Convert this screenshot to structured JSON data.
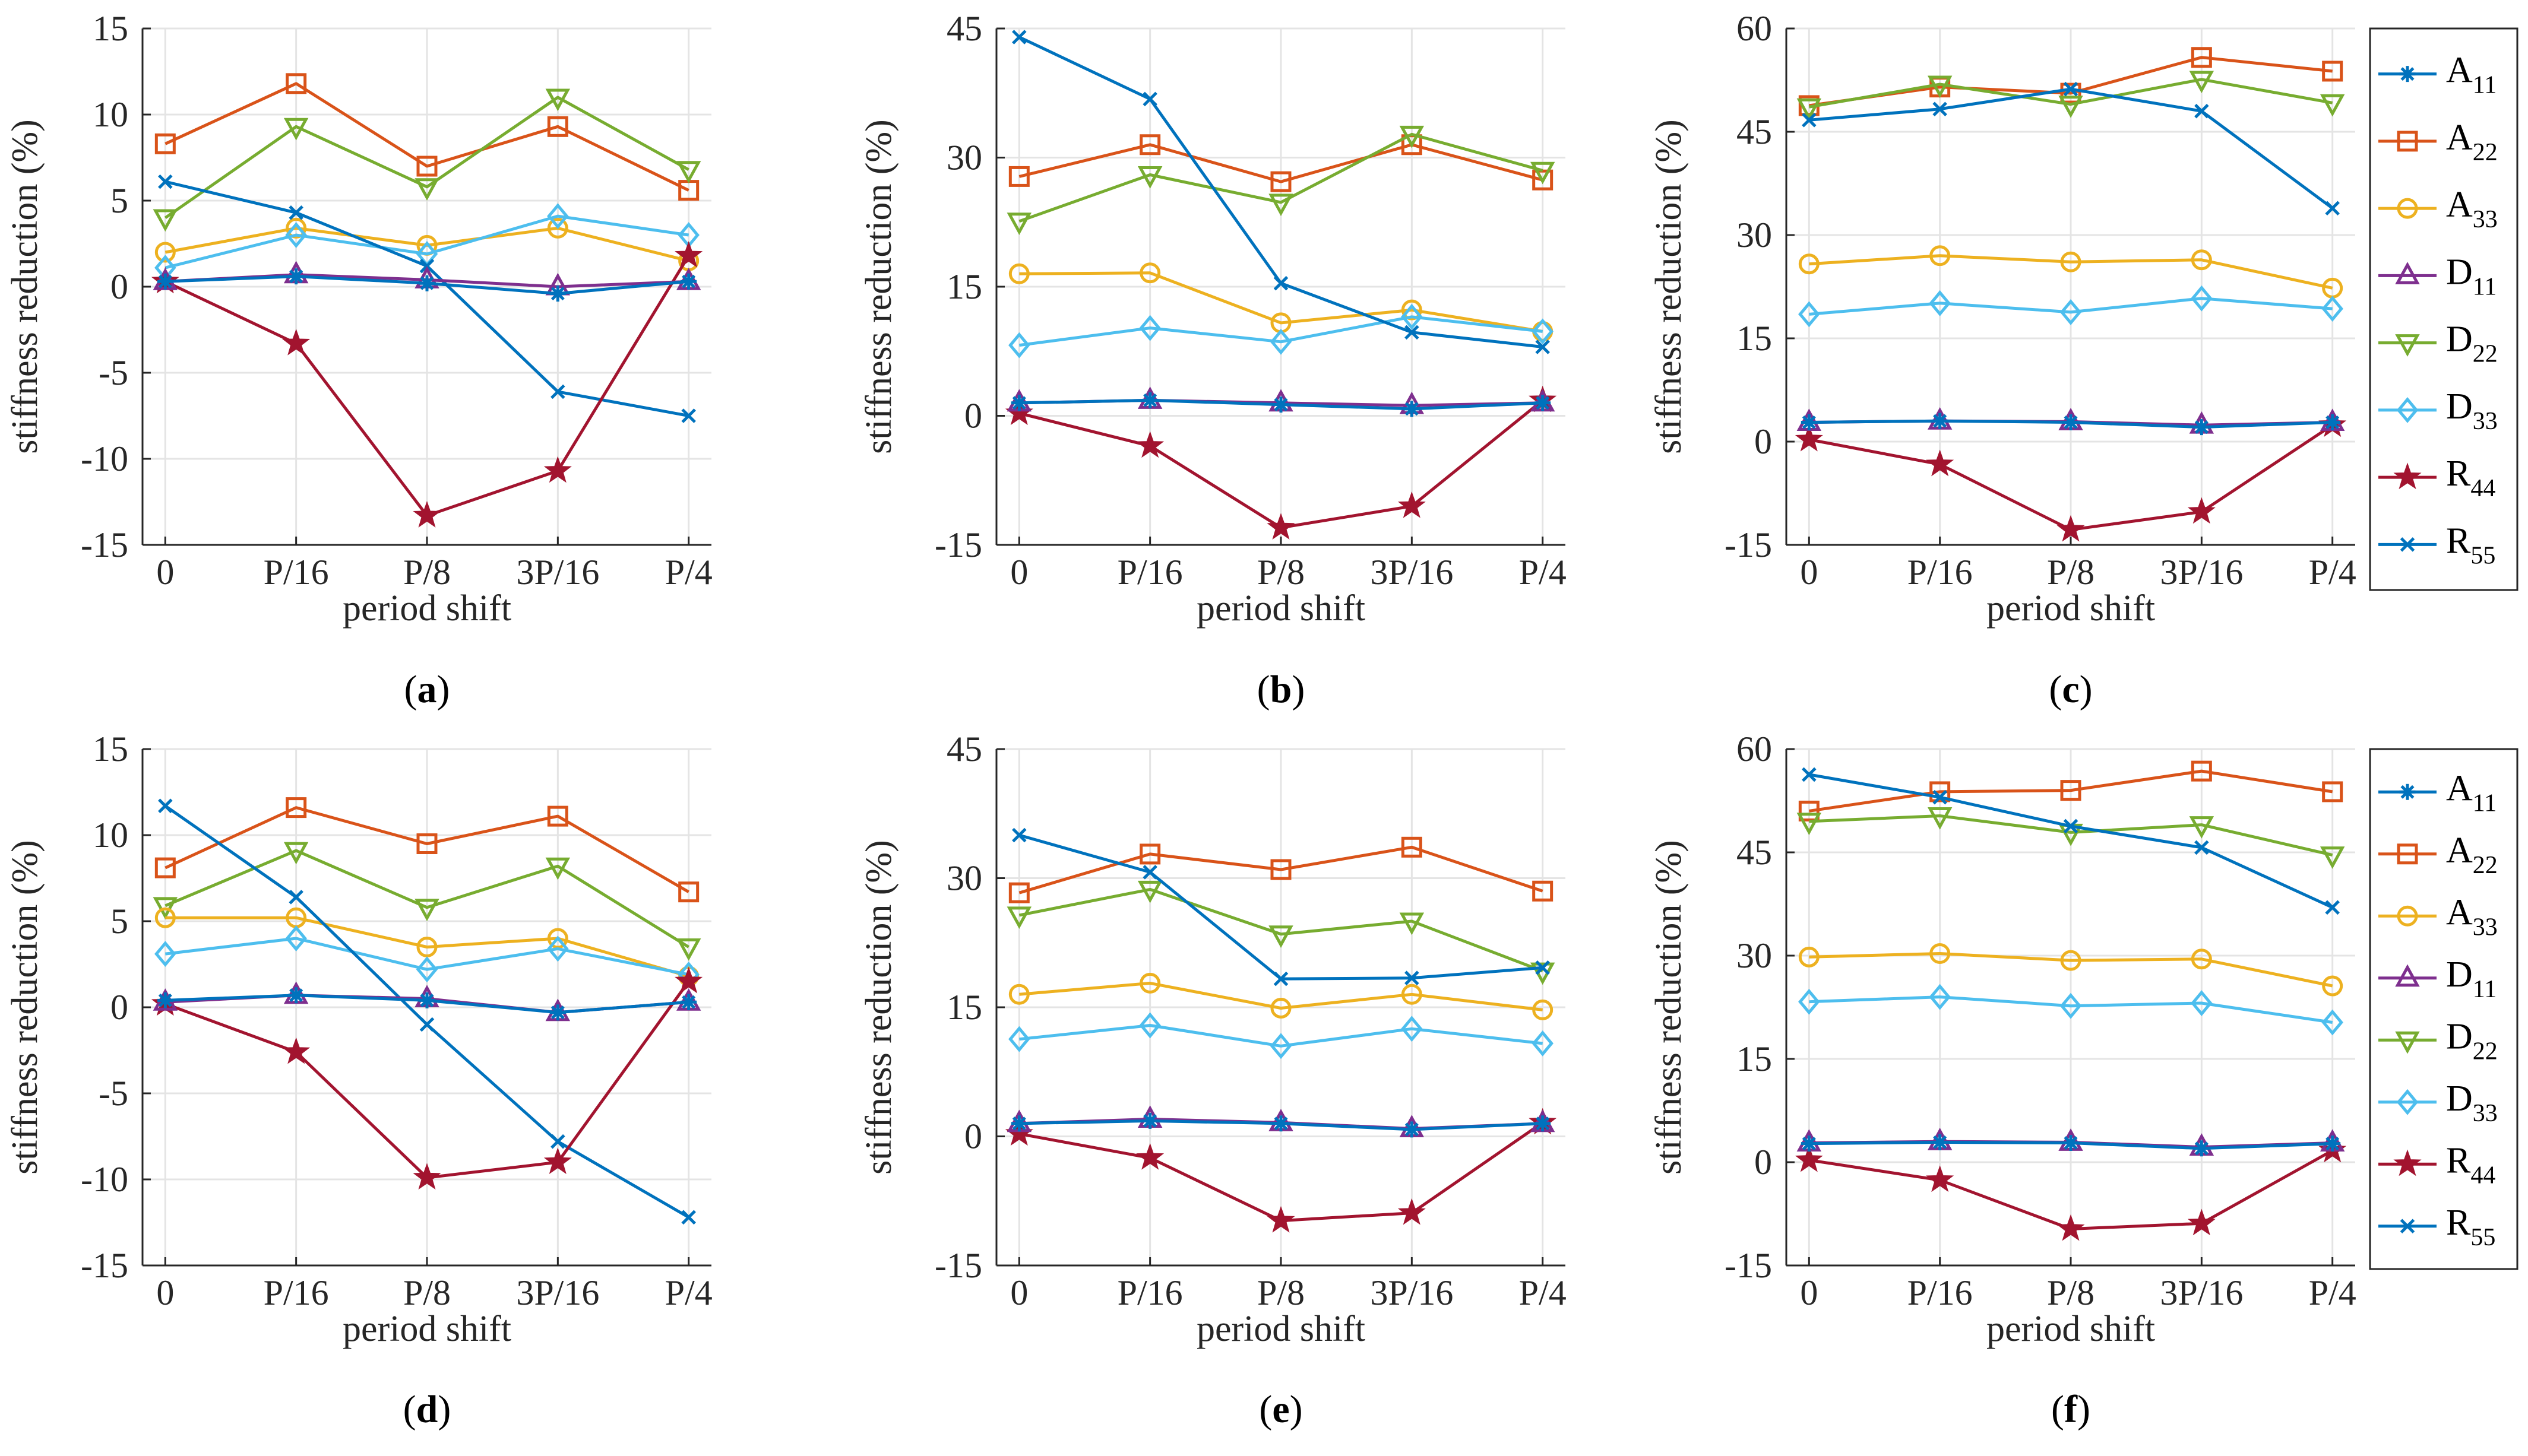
{
  "figure": {
    "categories": [
      "0",
      "P/16",
      "P/8",
      "3P/16",
      "P/4"
    ],
    "xlabel": "period shift",
    "ylabel": "stiffness reduction (%)",
    "legend_labels": [
      "A11",
      "A22",
      "A33",
      "D11",
      "D22",
      "D33",
      "R44",
      "R55"
    ]
  },
  "series_style": [
    {
      "name": "A11",
      "color": "#0072BD",
      "marker": "asterisk"
    },
    {
      "name": "A22",
      "color": "#D95319",
      "marker": "square"
    },
    {
      "name": "A33",
      "color": "#EDB120",
      "marker": "circle"
    },
    {
      "name": "D11",
      "color": "#7E2F8E",
      "marker": "triangle-up"
    },
    {
      "name": "D22",
      "color": "#77AC30",
      "marker": "triangle-down"
    },
    {
      "name": "D33",
      "color": "#4DBEEE",
      "marker": "diamond"
    },
    {
      "name": "R44",
      "color": "#A2142F",
      "marker": "star"
    },
    {
      "name": "R55",
      "color": "#0072BD",
      "marker": "x"
    }
  ],
  "chart_data": [
    {
      "type": "line",
      "panel": "a",
      "caption_letter": "a",
      "categories": [
        "0",
        "P/16",
        "P/8",
        "3P/16",
        "P/4"
      ],
      "xlabel": "period shift",
      "ylabel": "stiffness reduction (%)",
      "ylim": [
        -15,
        15
      ],
      "yticks": [
        -15,
        -10,
        -5,
        0,
        5,
        10,
        15
      ],
      "ytick_labels": [
        "-15",
        "-10",
        "-5",
        "0",
        "5",
        "10",
        "15"
      ],
      "series": [
        {
          "name": "A11",
          "values": [
            0.3,
            0.6,
            0.2,
            -0.4,
            0.3
          ]
        },
        {
          "name": "A22",
          "values": [
            8.3,
            11.8,
            7.0,
            9.3,
            5.6
          ]
        },
        {
          "name": "A33",
          "values": [
            2.0,
            3.4,
            2.4,
            3.4,
            1.5
          ]
        },
        {
          "name": "D11",
          "values": [
            0.3,
            0.7,
            0.4,
            0.0,
            0.3
          ]
        },
        {
          "name": "D22",
          "values": [
            4.0,
            9.3,
            5.8,
            11.0,
            6.8
          ]
        },
        {
          "name": "D33",
          "values": [
            1.1,
            3.0,
            1.9,
            4.1,
            3.0
          ]
        },
        {
          "name": "R44",
          "values": [
            0.3,
            -3.3,
            -13.3,
            -10.7,
            1.8
          ]
        },
        {
          "name": "R55",
          "values": [
            6.1,
            4.3,
            1.2,
            -6.1,
            -7.5
          ]
        }
      ]
    },
    {
      "type": "line",
      "panel": "b",
      "caption_letter": "b",
      "categories": [
        "0",
        "P/16",
        "P/8",
        "3P/16",
        "P/4"
      ],
      "xlabel": "period shift",
      "ylabel": "stiffness reduction (%)",
      "ylim": [
        -15,
        45
      ],
      "yticks": [
        -15,
        0,
        15,
        30,
        45
      ],
      "ytick_labels": [
        "-15",
        "0",
        "15",
        "30",
        "45"
      ],
      "series": [
        {
          "name": "A11",
          "values": [
            1.5,
            1.8,
            1.3,
            0.8,
            1.5
          ]
        },
        {
          "name": "A22",
          "values": [
            27.8,
            31.5,
            27.2,
            31.5,
            27.4
          ]
        },
        {
          "name": "A33",
          "values": [
            16.5,
            16.6,
            10.8,
            12.3,
            9.8
          ]
        },
        {
          "name": "D11",
          "values": [
            1.5,
            1.8,
            1.5,
            1.2,
            1.5
          ]
        },
        {
          "name": "D22",
          "values": [
            22.6,
            28.0,
            24.8,
            32.7,
            28.5
          ]
        },
        {
          "name": "D33",
          "values": [
            8.2,
            10.2,
            8.6,
            11.5,
            9.8
          ]
        },
        {
          "name": "R44",
          "values": [
            0.3,
            -3.5,
            -13.0,
            -10.5,
            1.8
          ]
        },
        {
          "name": "R55",
          "values": [
            44.0,
            36.8,
            15.4,
            9.7,
            8.0
          ]
        }
      ]
    },
    {
      "type": "line",
      "panel": "c",
      "caption_letter": "c",
      "categories": [
        "0",
        "P/16",
        "P/8",
        "3P/16",
        "P/4"
      ],
      "xlabel": "period shift",
      "ylabel": "stiffness reduction (%)",
      "ylim": [
        -15,
        60
      ],
      "yticks": [
        -15,
        0,
        15,
        30,
        45,
        60
      ],
      "ytick_labels": [
        "-15",
        "0",
        "15",
        "30",
        "45",
        "60"
      ],
      "series": [
        {
          "name": "A11",
          "values": [
            2.8,
            3.0,
            2.8,
            2.1,
            2.8
          ]
        },
        {
          "name": "A22",
          "values": [
            48.8,
            51.5,
            50.6,
            55.8,
            53.8
          ]
        },
        {
          "name": "A33",
          "values": [
            25.8,
            27.0,
            26.1,
            26.4,
            22.3
          ]
        },
        {
          "name": "D11",
          "values": [
            2.8,
            3.0,
            2.9,
            2.4,
            2.8
          ]
        },
        {
          "name": "D22",
          "values": [
            48.6,
            51.9,
            49.0,
            52.6,
            49.2
          ]
        },
        {
          "name": "D33",
          "values": [
            18.5,
            20.1,
            18.8,
            20.8,
            19.3
          ]
        },
        {
          "name": "R44",
          "values": [
            0.3,
            -3.3,
            -12.8,
            -10.2,
            2.4
          ]
        },
        {
          "name": "R55",
          "values": [
            46.7,
            48.3,
            51.2,
            48.0,
            33.9
          ]
        }
      ]
    },
    {
      "type": "line",
      "panel": "d",
      "caption_letter": "d",
      "categories": [
        "0",
        "P/16",
        "P/8",
        "3P/16",
        "P/4"
      ],
      "xlabel": "period shift",
      "ylabel": "stiffness reduction (%)",
      "ylim": [
        -15,
        15
      ],
      "yticks": [
        -15,
        -10,
        -5,
        0,
        5,
        10,
        15
      ],
      "ytick_labels": [
        "-15",
        "-10",
        "-5",
        "0",
        "5",
        "10",
        "15"
      ],
      "series": [
        {
          "name": "A11",
          "values": [
            0.4,
            0.7,
            0.4,
            -0.3,
            0.3
          ]
        },
        {
          "name": "A22",
          "values": [
            8.1,
            11.6,
            9.5,
            11.1,
            6.7
          ]
        },
        {
          "name": "A33",
          "values": [
            5.2,
            5.2,
            3.5,
            4.0,
            1.8
          ]
        },
        {
          "name": "D11",
          "values": [
            0.3,
            0.7,
            0.5,
            -0.3,
            0.3
          ]
        },
        {
          "name": "D22",
          "values": [
            5.9,
            9.1,
            5.8,
            8.2,
            3.5
          ]
        },
        {
          "name": "D33",
          "values": [
            3.1,
            4.0,
            2.2,
            3.4,
            1.9
          ]
        },
        {
          "name": "R44",
          "values": [
            0.2,
            -2.6,
            -9.9,
            -9.0,
            1.5
          ]
        },
        {
          "name": "R55",
          "values": [
            11.7,
            6.4,
            -1.0,
            -7.8,
            -12.2
          ]
        }
      ]
    },
    {
      "type": "line",
      "panel": "e",
      "caption_letter": "e",
      "categories": [
        "0",
        "P/16",
        "P/8",
        "3P/16",
        "P/4"
      ],
      "xlabel": "period shift",
      "ylabel": "stiffness reduction (%)",
      "ylim": [
        -15,
        45
      ],
      "yticks": [
        -15,
        0,
        15,
        30,
        45
      ],
      "ytick_labels": [
        "-15",
        "0",
        "15",
        "30",
        "45"
      ],
      "series": [
        {
          "name": "A11",
          "values": [
            1.5,
            1.8,
            1.5,
            0.8,
            1.5
          ]
        },
        {
          "name": "A22",
          "values": [
            28.3,
            32.8,
            31.0,
            33.6,
            28.5
          ]
        },
        {
          "name": "A33",
          "values": [
            16.5,
            17.8,
            14.9,
            16.5,
            14.7
          ]
        },
        {
          "name": "D11",
          "values": [
            1.5,
            2.0,
            1.6,
            0.9,
            1.5
          ]
        },
        {
          "name": "D22",
          "values": [
            25.7,
            28.7,
            23.5,
            25.0,
            19.2
          ]
        },
        {
          "name": "D33",
          "values": [
            11.3,
            12.9,
            10.5,
            12.5,
            10.8
          ]
        },
        {
          "name": "R44",
          "values": [
            0.3,
            -2.5,
            -9.8,
            -8.9,
            1.6
          ]
        },
        {
          "name": "R55",
          "values": [
            35.0,
            30.7,
            18.3,
            18.4,
            19.6
          ]
        }
      ]
    },
    {
      "type": "line",
      "panel": "f",
      "caption_letter": "f",
      "categories": [
        "0",
        "P/16",
        "P/8",
        "3P/16",
        "P/4"
      ],
      "xlabel": "period shift",
      "ylabel": "stiffness reduction (%)",
      "ylim": [
        -15,
        60
      ],
      "yticks": [
        -15,
        0,
        15,
        30,
        45,
        60
      ],
      "ytick_labels": [
        "-15",
        "0",
        "15",
        "30",
        "45",
        "60"
      ],
      "series": [
        {
          "name": "A11",
          "values": [
            2.7,
            2.9,
            2.8,
            2.0,
            2.7
          ]
        },
        {
          "name": "A22",
          "values": [
            51.0,
            53.8,
            54.0,
            56.8,
            53.8
          ]
        },
        {
          "name": "A33",
          "values": [
            29.8,
            30.3,
            29.3,
            29.5,
            25.6
          ]
        },
        {
          "name": "D11",
          "values": [
            2.8,
            3.0,
            2.9,
            2.2,
            2.8
          ]
        },
        {
          "name": "D22",
          "values": [
            49.5,
            50.3,
            47.9,
            49.0,
            44.6
          ]
        },
        {
          "name": "D33",
          "values": [
            23.3,
            24.0,
            22.7,
            23.1,
            20.3
          ]
        },
        {
          "name": "R44",
          "values": [
            0.3,
            -2.6,
            -9.7,
            -8.9,
            1.7
          ]
        },
        {
          "name": "R55",
          "values": [
            56.3,
            53.0,
            48.8,
            45.7,
            37.0
          ]
        }
      ]
    }
  ]
}
